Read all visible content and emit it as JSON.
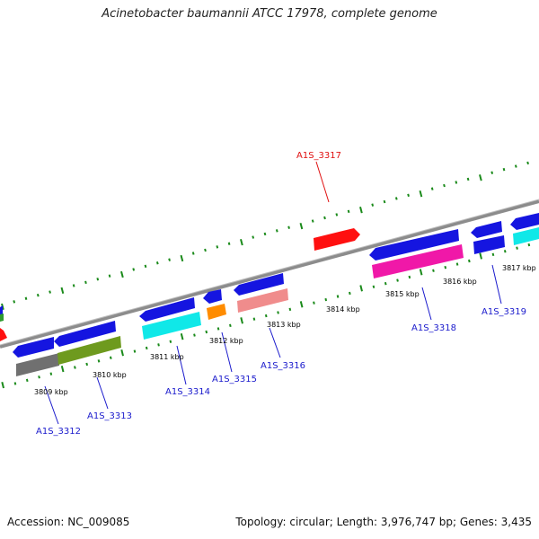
{
  "title": "Acinetobacter baumannii ATCC 17978, complete genome",
  "footer": {
    "accession": "Accession: NC_009085",
    "summary": "Topology: circular; Length: 3,976,747 bp; Genes: 3,435"
  },
  "colors": {
    "backbone": "#8c8c8c",
    "tick": "#1a8a1a",
    "label_blue": "#1a1acc",
    "label_red": "#e01010",
    "blue": "#1515e0",
    "cyan": "#10e8e8",
    "gray": "#707070",
    "olive": "#6e9a1e",
    "orange": "#ff8c00",
    "salmon": "#f08c8c",
    "magenta": "#f018a8",
    "red": "#ff1010",
    "green": "#2e9a2e"
  },
  "kbp_labels": [
    "3809 kbp",
    "3810 kbp",
    "3811 kbp",
    "3812 kbp",
    "3813 kbp",
    "3814 kbp",
    "3815 kbp",
    "3816 kbp",
    "3817 kbp"
  ],
  "gene_labels": [
    "A1S_3312",
    "A1S_3313",
    "A1S_3314",
    "A1S_3315",
    "A1S_3316",
    "A1S_3317",
    "A1S_3318",
    "A1S_3319"
  ]
}
